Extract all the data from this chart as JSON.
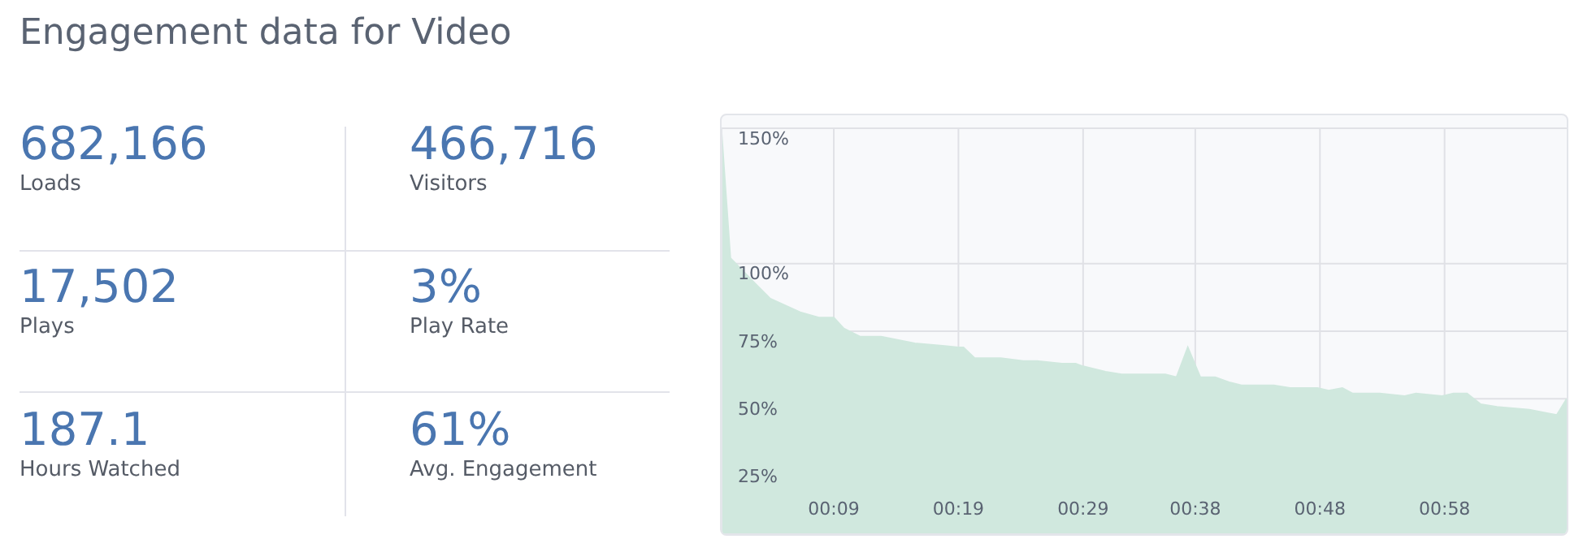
{
  "chart_data": [
    {
      "type": "other",
      "title": "Engagement data for Video",
      "annotations": [
        "682,166",
        "Loads",
        "466,716",
        "Visitors",
        "17,502",
        "Plays",
        "3%",
        "Play Rate",
        "187.1",
        "Hours Watched",
        "61%",
        "Avg. Engagement"
      ]
    },
    {
      "type": "area",
      "color": "#d0e8de",
      "grid": true,
      "xlim": [
        0,
        67.8
      ],
      "ylim": [
        0,
        150
      ],
      "xticks": [
        {
          "value": 9,
          "label": "00:09"
        },
        {
          "value": 19,
          "label": "00:19"
        },
        {
          "value": 29,
          "label": "00:29"
        },
        {
          "value": 38,
          "label": "00:38"
        },
        {
          "value": 48,
          "label": "00:48"
        },
        {
          "value": 58,
          "label": "00:58"
        }
      ],
      "yticks": [
        {
          "value": 25,
          "label": "25%"
        },
        {
          "value": 50,
          "label": "50%"
        },
        {
          "value": 75,
          "label": "75%"
        },
        {
          "value": 100,
          "label": "100%"
        },
        {
          "value": 150,
          "label": "150%"
        }
      ],
      "x": [
        0,
        0.7,
        2.6,
        3.9,
        6.3,
        7.8,
        9.0,
        9.8,
        11.1,
        12.8,
        15.5,
        16.8,
        17.9,
        19.0,
        19.4,
        20.3,
        21.1,
        22.4,
        24.2,
        25.3,
        27.3,
        28.4,
        29.0,
        30.8,
        32.1,
        33.8,
        35.6,
        36.5,
        37.4,
        38.4,
        39.6,
        40.8,
        41.7,
        44.3,
        45.6,
        47.8,
        48.7,
        49.8,
        50.6,
        51.7,
        52.8,
        54.8,
        55.7,
        57.8,
        58.7,
        59.8,
        60.9,
        62.2,
        64.8,
        67.0,
        67.8
      ],
      "values": [
        148,
        102,
        93,
        87,
        82,
        80,
        80,
        76,
        73,
        73,
        70.5,
        70,
        69.5,
        69,
        69,
        65,
        65,
        65,
        64,
        64,
        63,
        63,
        62,
        60,
        59,
        59,
        59,
        58,
        69,
        58,
        58,
        56,
        55,
        55,
        54,
        54,
        53,
        54,
        52,
        52,
        52,
        51,
        52,
        51,
        52,
        52,
        48,
        47,
        46,
        44,
        50
      ]
    }
  ]
}
